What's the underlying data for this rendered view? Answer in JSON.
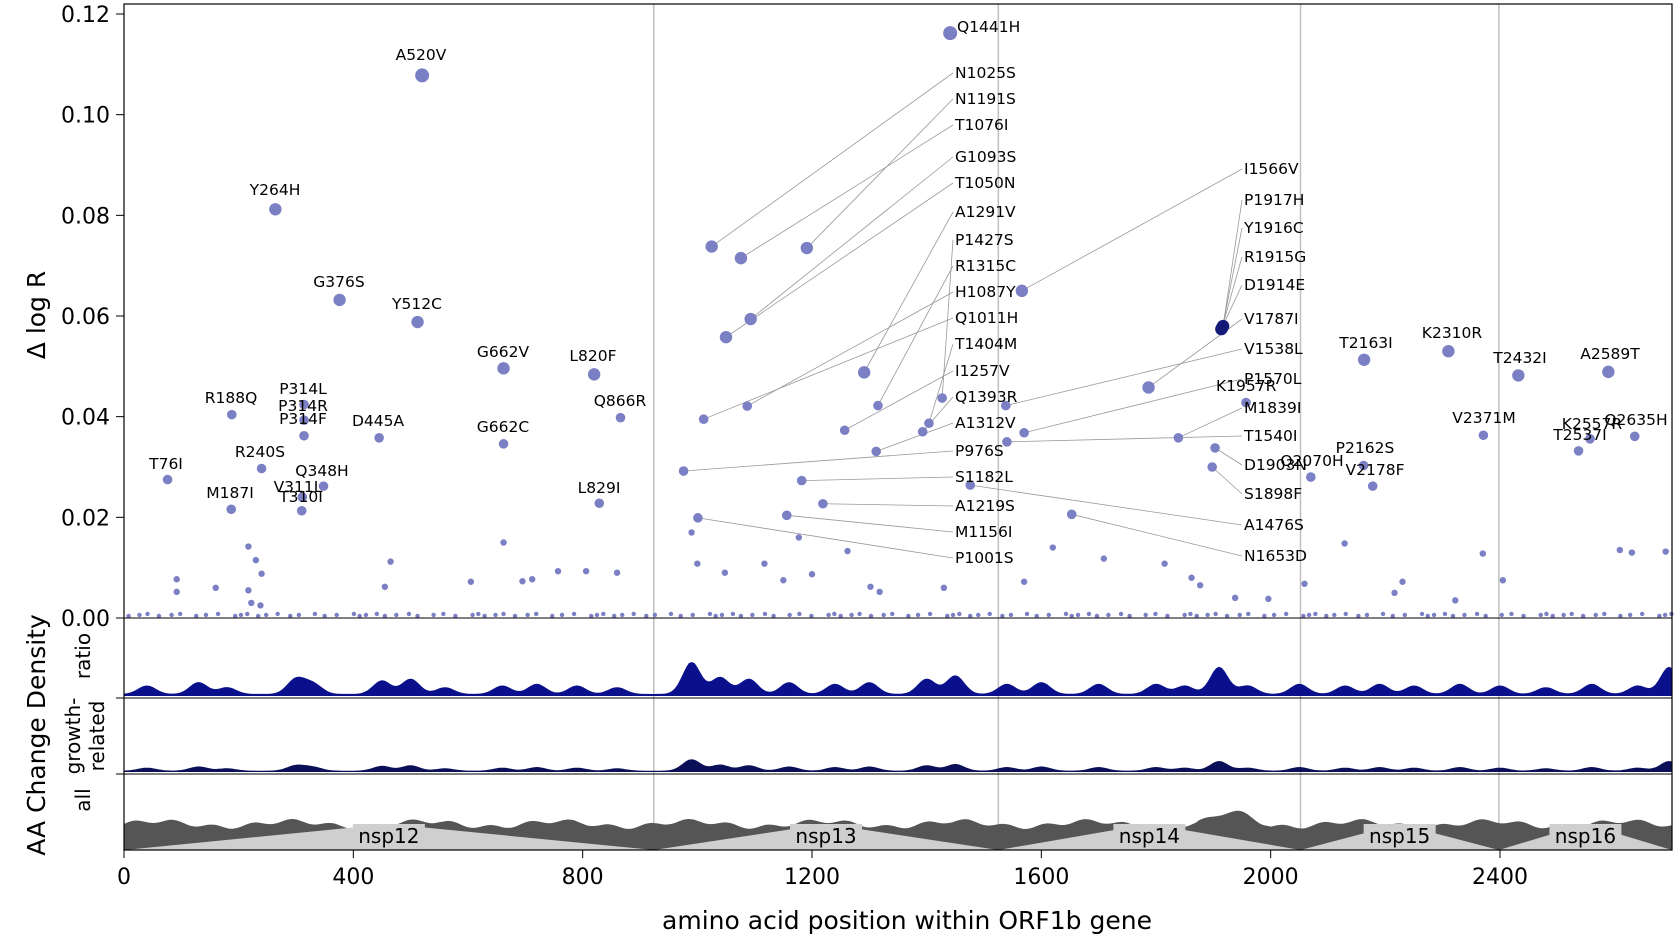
{
  "chart_data": {
    "type": "scatter",
    "title": "",
    "xlabel": "amino acid position within ORF1b gene",
    "ylabel": "Δ log R",
    "density_ylabel": "AA Change Density",
    "track_labels": [
      "ratio",
      "growth-related",
      "all"
    ],
    "xlim": [
      0,
      2700
    ],
    "ylim": [
      0,
      0.122
    ],
    "xticks": [
      0,
      400,
      800,
      1200,
      1600,
      2000,
      2400
    ],
    "yticks": [
      0.0,
      0.02,
      0.04,
      0.06,
      0.08,
      0.1,
      0.12
    ],
    "grid": false,
    "region_boundaries": [
      924,
      1525,
      2052,
      2398
    ],
    "regions": [
      {
        "name": "nsp12",
        "start": 0,
        "end": 924
      },
      {
        "name": "nsp13",
        "start": 924,
        "end": 1525
      },
      {
        "name": "nsp14",
        "start": 1525,
        "end": 2052
      },
      {
        "name": "nsp15",
        "start": 2052,
        "end": 2398
      },
      {
        "name": "nsp16",
        "start": 2398,
        "end": 2700
      }
    ],
    "colors": {
      "points": "#7b7fc4",
      "highlight": "#141a78",
      "ratio": "#0a108c",
      "growth": "#0b0f57",
      "all": "#555555",
      "nsp_triangle": "#cfcfcf",
      "leader": "#999999"
    },
    "labeled_points": [
      {
        "name": "Q1441H",
        "x": 1441,
        "y": 0.1162
      },
      {
        "name": "A520V",
        "x": 520,
        "y": 0.1078
      },
      {
        "name": "Y264H",
        "x": 264,
        "y": 0.0812
      },
      {
        "name": "G376S",
        "x": 376,
        "y": 0.0632
      },
      {
        "name": "Y512C",
        "x": 512,
        "y": 0.0588
      },
      {
        "name": "G662V",
        "x": 662,
        "y": 0.0496
      },
      {
        "name": "L820F",
        "x": 820,
        "y": 0.0484
      },
      {
        "name": "R188Q",
        "x": 188,
        "y": 0.0404
      },
      {
        "name": "P314L",
        "x": 314,
        "y": 0.0424
      },
      {
        "name": "P314R",
        "x": 314,
        "y": 0.0393
      },
      {
        "name": "P314F",
        "x": 314,
        "y": 0.0362
      },
      {
        "name": "D445A",
        "x": 445,
        "y": 0.0358
      },
      {
        "name": "Q866R",
        "x": 866,
        "y": 0.0398
      },
      {
        "name": "G662C",
        "x": 662,
        "y": 0.0346
      },
      {
        "name": "T76I",
        "x": 76,
        "y": 0.0275
      },
      {
        "name": "R240S",
        "x": 240,
        "y": 0.0297
      },
      {
        "name": "Q348H",
        "x": 348,
        "y": 0.0262
      },
      {
        "name": "V311L",
        "x": 311,
        "y": 0.024
      },
      {
        "name": "T310I",
        "x": 310,
        "y": 0.0213
      },
      {
        "name": "M187I",
        "x": 187,
        "y": 0.0216
      },
      {
        "name": "L829I",
        "x": 829,
        "y": 0.0228
      },
      {
        "name": "N1025S",
        "x": 1025,
        "y": 0.0738
      },
      {
        "name": "N1191S",
        "x": 1191,
        "y": 0.0735
      },
      {
        "name": "T1076I",
        "x": 1076,
        "y": 0.0715
      },
      {
        "name": "G1093S",
        "x": 1093,
        "y": 0.0594
      },
      {
        "name": "T1050N",
        "x": 1050,
        "y": 0.0558
      },
      {
        "name": "A1291V",
        "x": 1291,
        "y": 0.0488
      },
      {
        "name": "P1427S",
        "x": 1427,
        "y": 0.0437
      },
      {
        "name": "R1315C",
        "x": 1315,
        "y": 0.0422
      },
      {
        "name": "H1087Y",
        "x": 1087,
        "y": 0.0421
      },
      {
        "name": "Q1011H",
        "x": 1011,
        "y": 0.0395
      },
      {
        "name": "T1404M",
        "x": 1404,
        "y": 0.0387
      },
      {
        "name": "I1257V",
        "x": 1257,
        "y": 0.0373
      },
      {
        "name": "Q1393R",
        "x": 1393,
        "y": 0.037
      },
      {
        "name": "A1312V",
        "x": 1312,
        "y": 0.0331
      },
      {
        "name": "P976S",
        "x": 976,
        "y": 0.0292
      },
      {
        "name": "S1182L",
        "x": 1182,
        "y": 0.0273
      },
      {
        "name": "A1219S",
        "x": 1219,
        "y": 0.0227
      },
      {
        "name": "M1156I",
        "x": 1156,
        "y": 0.0204
      },
      {
        "name": "P1001S",
        "x": 1001,
        "y": 0.0199
      },
      {
        "name": "I1566V",
        "x": 1566,
        "y": 0.065
      },
      {
        "name": "P1917H",
        "x": 1917,
        "y": 0.058
      },
      {
        "name": "Y1916C",
        "x": 1916,
        "y": 0.0578
      },
      {
        "name": "R1915G",
        "x": 1915,
        "y": 0.0576
      },
      {
        "name": "D1914E",
        "x": 1914,
        "y": 0.0574
      },
      {
        "name": "V1787I",
        "x": 1787,
        "y": 0.0458
      },
      {
        "name": "V1538L",
        "x": 1538,
        "y": 0.0422
      },
      {
        "name": "P1570L",
        "x": 1570,
        "y": 0.0368
      },
      {
        "name": "K1957R",
        "x": 1957,
        "y": 0.0428
      },
      {
        "name": "M1839I",
        "x": 1839,
        "y": 0.0358
      },
      {
        "name": "T1540I",
        "x": 1540,
        "y": 0.035
      },
      {
        "name": "D1903N",
        "x": 1903,
        "y": 0.0338
      },
      {
        "name": "S1898F",
        "x": 1898,
        "y": 0.03
      },
      {
        "name": "A1476S",
        "x": 1476,
        "y": 0.0264
      },
      {
        "name": "N1653D",
        "x": 1653,
        "y": 0.0206
      },
      {
        "name": "T2163I",
        "x": 2163,
        "y": 0.0513
      },
      {
        "name": "K2310R",
        "x": 2310,
        "y": 0.053
      },
      {
        "name": "T2432I",
        "x": 2432,
        "y": 0.0482
      },
      {
        "name": "A2589T",
        "x": 2589,
        "y": 0.0489
      },
      {
        "name": "V2371M",
        "x": 2371,
        "y": 0.0363
      },
      {
        "name": "K2557R",
        "x": 2557,
        "y": 0.0356
      },
      {
        "name": "Q2635H",
        "x": 2635,
        "y": 0.0361
      },
      {
        "name": "T2537I",
        "x": 2537,
        "y": 0.0332
      },
      {
        "name": "P2162S",
        "x": 2162,
        "y": 0.0303
      },
      {
        "name": "Q2070H",
        "x": 2070,
        "y": 0.028
      },
      {
        "name": "V2178F",
        "x": 2178,
        "y": 0.0262
      }
    ],
    "minor_points": [
      [
        92,
        0.0077
      ],
      [
        92,
        0.0052
      ],
      [
        160,
        0.006
      ],
      [
        217,
        0.0142
      ],
      [
        217,
        0.0055
      ],
      [
        222,
        0.003
      ],
      [
        230,
        0.0115
      ],
      [
        238,
        0.0025
      ],
      [
        240,
        0.0088
      ],
      [
        465,
        0.0112
      ],
      [
        455,
        0.0062
      ],
      [
        605,
        0.0072
      ],
      [
        662,
        0.015
      ],
      [
        695,
        0.0073
      ],
      [
        712,
        0.0077
      ],
      [
        757,
        0.0093
      ],
      [
        806,
        0.0093
      ],
      [
        860,
        0.009
      ],
      [
        990,
        0.017
      ],
      [
        1000,
        0.0108
      ],
      [
        1048,
        0.009
      ],
      [
        1117,
        0.0108
      ],
      [
        1150,
        0.0075
      ],
      [
        1177,
        0.016
      ],
      [
        1200,
        0.0087
      ],
      [
        1262,
        0.0133
      ],
      [
        1302,
        0.0062
      ],
      [
        1318,
        0.0052
      ],
      [
        1430,
        0.006
      ],
      [
        1570,
        0.0072
      ],
      [
        1620,
        0.014
      ],
      [
        1709,
        0.0118
      ],
      [
        1815,
        0.0108
      ],
      [
        1862,
        0.008
      ],
      [
        1877,
        0.0065
      ],
      [
        1938,
        0.004
      ],
      [
        1996,
        0.0038
      ],
      [
        2059,
        0.0068
      ],
      [
        2129,
        0.0148
      ],
      [
        2216,
        0.005
      ],
      [
        2230,
        0.0072
      ],
      [
        2322,
        0.0035
      ],
      [
        2370,
        0.0128
      ],
      [
        2405,
        0.0075
      ],
      [
        2609,
        0.0135
      ],
      [
        2630,
        0.013
      ],
      [
        2689,
        0.0132
      ]
    ]
  }
}
